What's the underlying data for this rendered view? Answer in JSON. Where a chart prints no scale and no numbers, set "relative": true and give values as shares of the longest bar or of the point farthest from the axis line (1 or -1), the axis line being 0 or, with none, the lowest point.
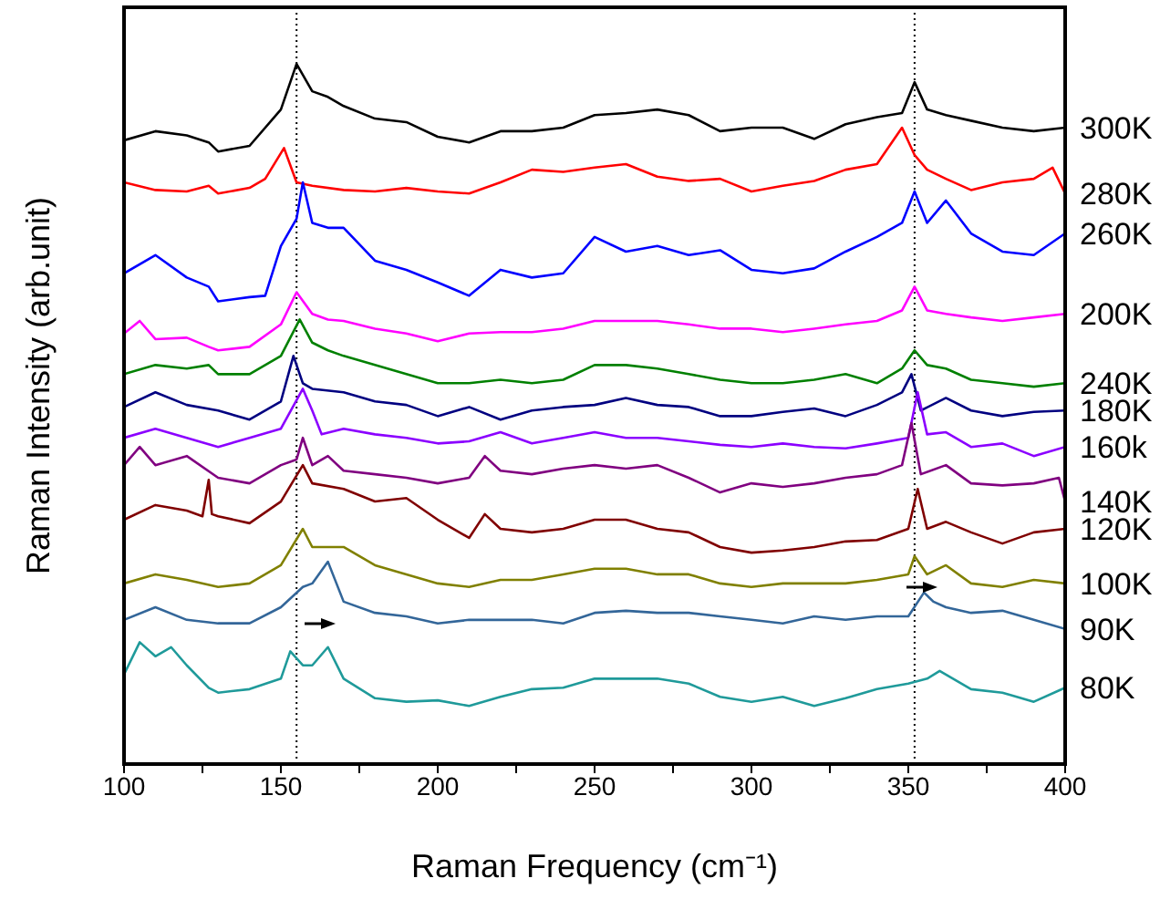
{
  "chart_data": {
    "type": "line",
    "relative": true,
    "xlabel": "Raman Frequency (cm⁻¹)",
    "ylabel": "Raman Intensity (arb.unit)",
    "xlim": [
      100,
      400
    ],
    "xticks": [
      100,
      {
        "value": 125,
        "label": null
      },
      150,
      {
        "value": 175,
        "label": null
      },
      200,
      {
        "value": 225,
        "label": null
      },
      250,
      {
        "value": 275,
        "label": null
      },
      300,
      {
        "value": 325,
        "label": null
      },
      350,
      {
        "value": 375,
        "label": null
      },
      400
    ],
    "ref_lines": [
      {
        "axis": "x",
        "value": 155,
        "color": "#000000",
        "line_style": "dotted"
      },
      {
        "axis": "x",
        "value": 352,
        "color": "#000000",
        "line_style": "dotted"
      }
    ],
    "series": [
      {
        "name": "300K",
        "color": "#000000",
        "x": [
          100,
          110,
          120,
          127,
          130,
          140,
          150,
          155,
          160,
          165,
          170,
          180,
          190,
          200,
          210,
          220,
          230,
          240,
          250,
          260,
          270,
          280,
          290,
          300,
          310,
          320,
          330,
          340,
          348,
          352,
          356,
          362,
          370,
          380,
          390,
          400
        ],
        "values": [
          0.891,
          0.904,
          0.898,
          0.888,
          0.875,
          0.883,
          0.935,
          1,
          0.961,
          0.953,
          0.94,
          0.922,
          0.917,
          0.896,
          0.888,
          0.904,
          0.904,
          0.909,
          0.927,
          0.93,
          0.935,
          0.927,
          0.904,
          0.909,
          0.909,
          0.893,
          0.914,
          0.924,
          0.93,
          0.974,
          0.935,
          0.927,
          0.919,
          0.909,
          0.904,
          0.909
        ]
      },
      {
        "name": "280K",
        "color": "#ff0000",
        "x": [
          100,
          110,
          120,
          127,
          130,
          140,
          145,
          151,
          155,
          160,
          170,
          180,
          190,
          200,
          210,
          220,
          230,
          240,
          250,
          260,
          270,
          280,
          290,
          300,
          310,
          320,
          330,
          340,
          348,
          352,
          356,
          362,
          370,
          380,
          390,
          396,
          400
        ],
        "values": [
          0.831,
          0.82,
          0.818,
          0.826,
          0.815,
          0.823,
          0.836,
          0.88,
          0.831,
          0.826,
          0.82,
          0.818,
          0.823,
          0.818,
          0.815,
          0.831,
          0.849,
          0.846,
          0.852,
          0.857,
          0.839,
          0.833,
          0.836,
          0.818,
          0.826,
          0.833,
          0.849,
          0.857,
          0.909,
          0.87,
          0.849,
          0.836,
          0.82,
          0.831,
          0.836,
          0.852,
          0.815
        ]
      },
      {
        "name": "260K",
        "color": "#0000ff",
        "x": [
          100,
          110,
          120,
          127,
          130,
          140,
          145,
          150,
          155,
          157,
          160,
          165,
          170,
          180,
          190,
          200,
          210,
          220,
          230,
          240,
          250,
          260,
          270,
          280,
          290,
          300,
          310,
          320,
          330,
          340,
          348,
          352,
          356,
          362,
          370,
          380,
          390,
          400
        ],
        "values": [
          0.701,
          0.727,
          0.695,
          0.682,
          0.661,
          0.667,
          0.669,
          0.74,
          0.779,
          0.831,
          0.773,
          0.766,
          0.766,
          0.719,
          0.706,
          0.688,
          0.669,
          0.706,
          0.695,
          0.701,
          0.753,
          0.732,
          0.74,
          0.727,
          0.734,
          0.706,
          0.701,
          0.708,
          0.732,
          0.753,
          0.773,
          0.818,
          0.773,
          0.805,
          0.758,
          0.732,
          0.727,
          0.758
        ]
      },
      {
        "name": "200K",
        "color": "#ff00ff",
        "x": [
          100,
          105,
          110,
          120,
          127,
          130,
          140,
          150,
          155,
          160,
          165,
          170,
          180,
          190,
          200,
          210,
          220,
          230,
          240,
          250,
          260,
          270,
          280,
          290,
          300,
          310,
          320,
          330,
          340,
          348,
          352,
          356,
          362,
          370,
          380,
          390,
          400
        ],
        "values": [
          0.615,
          0.633,
          0.607,
          0.609,
          0.596,
          0.591,
          0.596,
          0.628,
          0.674,
          0.643,
          0.635,
          0.633,
          0.622,
          0.615,
          0.604,
          0.615,
          0.617,
          0.617,
          0.622,
          0.633,
          0.633,
          0.633,
          0.628,
          0.622,
          0.622,
          0.617,
          0.622,
          0.628,
          0.633,
          0.648,
          0.682,
          0.648,
          0.643,
          0.638,
          0.633,
          0.638,
          0.643
        ]
      },
      {
        "name": "240K",
        "color": "#008000",
        "x": [
          100,
          110,
          120,
          127,
          130,
          140,
          150,
          153,
          156,
          160,
          165,
          170,
          180,
          190,
          200,
          210,
          220,
          230,
          240,
          250,
          260,
          270,
          280,
          290,
          300,
          310,
          320,
          330,
          340,
          348,
          352,
          356,
          362,
          370,
          380,
          390,
          400
        ],
        "values": [
          0.557,
          0.57,
          0.565,
          0.57,
          0.557,
          0.557,
          0.583,
          0.609,
          0.635,
          0.602,
          0.591,
          0.583,
          0.57,
          0.557,
          0.544,
          0.544,
          0.549,
          0.544,
          0.549,
          0.57,
          0.57,
          0.565,
          0.557,
          0.549,
          0.544,
          0.544,
          0.549,
          0.557,
          0.544,
          0.565,
          0.591,
          0.57,
          0.565,
          0.549,
          0.544,
          0.539,
          0.544
        ]
      },
      {
        "name": "180K",
        "color": "#000080",
        "x": [
          100,
          110,
          120,
          130,
          140,
          150,
          154,
          157,
          160,
          170,
          180,
          190,
          200,
          210,
          220,
          230,
          240,
          250,
          260,
          270,
          280,
          290,
          300,
          310,
          320,
          330,
          340,
          348,
          351,
          354,
          362,
          370,
          380,
          390,
          400
        ],
        "values": [
          0.51,
          0.531,
          0.513,
          0.505,
          0.492,
          0.518,
          0.583,
          0.544,
          0.536,
          0.531,
          0.518,
          0.513,
          0.497,
          0.51,
          0.492,
          0.505,
          0.51,
          0.513,
          0.523,
          0.513,
          0.51,
          0.497,
          0.497,
          0.503,
          0.508,
          0.497,
          0.513,
          0.531,
          0.557,
          0.505,
          0.523,
          0.505,
          0.497,
          0.503,
          0.505
        ]
      },
      {
        "name": "160k",
        "color": "#8b00ff",
        "x": [
          100,
          110,
          120,
          130,
          140,
          150,
          157,
          160,
          163,
          170,
          180,
          190,
          200,
          210,
          220,
          230,
          240,
          250,
          260,
          270,
          280,
          290,
          300,
          310,
          320,
          330,
          340,
          350,
          353,
          356,
          362,
          370,
          380,
          390,
          400
        ],
        "values": [
          0.466,
          0.479,
          0.466,
          0.453,
          0.466,
          0.479,
          0.536,
          0.505,
          0.471,
          0.479,
          0.471,
          0.466,
          0.458,
          0.461,
          0.474,
          0.458,
          0.466,
          0.474,
          0.466,
          0.466,
          0.461,
          0.456,
          0.453,
          0.458,
          0.453,
          0.451,
          0.458,
          0.466,
          0.531,
          0.471,
          0.474,
          0.453,
          0.458,
          0.44,
          0.453
        ]
      },
      {
        "name": "140K",
        "color": "#800080",
        "x": [
          100,
          105,
          110,
          120,
          130,
          140,
          150,
          155,
          157,
          160,
          165,
          170,
          180,
          190,
          200,
          210,
          215,
          220,
          230,
          240,
          250,
          260,
          270,
          280,
          290,
          300,
          310,
          320,
          330,
          340,
          348,
          351,
          354,
          362,
          370,
          380,
          390,
          398,
          400
        ],
        "values": [
          0.427,
          0.453,
          0.427,
          0.44,
          0.409,
          0.401,
          0.427,
          0.435,
          0.466,
          0.427,
          0.44,
          0.419,
          0.414,
          0.409,
          0.401,
          0.409,
          0.44,
          0.419,
          0.414,
          0.422,
          0.427,
          0.422,
          0.427,
          0.409,
          0.388,
          0.401,
          0.396,
          0.401,
          0.409,
          0.414,
          0.427,
          0.487,
          0.414,
          0.427,
          0.401,
          0.398,
          0.401,
          0.409,
          0.375
        ]
      },
      {
        "name": "120K",
        "color": "#800000",
        "x": [
          100,
          110,
          120,
          125,
          127,
          128,
          130,
          140,
          150,
          157,
          160,
          170,
          180,
          190,
          200,
          210,
          215,
          220,
          230,
          240,
          250,
          260,
          270,
          280,
          290,
          300,
          310,
          320,
          330,
          340,
          350,
          353,
          356,
          362,
          370,
          380,
          390,
          400
        ],
        "values": [
          0.349,
          0.37,
          0.362,
          0.354,
          0.406,
          0.357,
          0.354,
          0.344,
          0.375,
          0.427,
          0.401,
          0.393,
          0.375,
          0.38,
          0.349,
          0.323,
          0.357,
          0.336,
          0.331,
          0.336,
          0.349,
          0.349,
          0.336,
          0.331,
          0.31,
          0.302,
          0.305,
          0.31,
          0.318,
          0.32,
          0.336,
          0.393,
          0.336,
          0.346,
          0.331,
          0.315,
          0.331,
          0.336
        ]
      },
      {
        "name": "100K",
        "color": "#808000",
        "x": [
          100,
          110,
          120,
          130,
          140,
          150,
          157,
          160,
          170,
          180,
          190,
          200,
          210,
          220,
          230,
          240,
          250,
          260,
          270,
          280,
          290,
          300,
          310,
          320,
          330,
          340,
          350,
          352,
          356,
          362,
          370,
          380,
          390,
          400
        ],
        "values": [
          0.258,
          0.271,
          0.263,
          0.253,
          0.258,
          0.284,
          0.336,
          0.31,
          0.31,
          0.284,
          0.271,
          0.258,
          0.253,
          0.263,
          0.263,
          0.271,
          0.279,
          0.279,
          0.271,
          0.271,
          0.258,
          0.253,
          0.258,
          0.258,
          0.258,
          0.263,
          0.271,
          0.297,
          0.271,
          0.284,
          0.258,
          0.253,
          0.263,
          0.258
        ]
      },
      {
        "name": "90K",
        "color": "#336699",
        "x": [
          100,
          110,
          120,
          130,
          140,
          150,
          157,
          160,
          165,
          170,
          180,
          190,
          200,
          210,
          220,
          230,
          240,
          250,
          260,
          270,
          280,
          290,
          300,
          310,
          320,
          330,
          340,
          350,
          355,
          358,
          362,
          370,
          380,
          390,
          400
        ],
        "values": [
          0.206,
          0.224,
          0.206,
          0.201,
          0.201,
          0.224,
          0.253,
          0.258,
          0.289,
          0.232,
          0.216,
          0.211,
          0.201,
          0.206,
          0.206,
          0.206,
          0.201,
          0.216,
          0.219,
          0.216,
          0.216,
          0.211,
          0.206,
          0.201,
          0.211,
          0.206,
          0.211,
          0.211,
          0.245,
          0.232,
          0.224,
          0.216,
          0.219,
          0.206,
          0.193
        ]
      },
      {
        "name": "80K",
        "color": "#1f9a9a",
        "x": [
          100,
          105,
          110,
          115,
          120,
          127,
          130,
          140,
          150,
          153,
          157,
          160,
          165,
          170,
          180,
          190,
          200,
          210,
          220,
          230,
          240,
          250,
          260,
          270,
          280,
          290,
          300,
          310,
          320,
          330,
          340,
          350,
          356,
          360,
          370,
          380,
          390,
          400
        ],
        "values": [
          0.128,
          0.174,
          0.154,
          0.167,
          0.141,
          0.109,
          0.102,
          0.107,
          0.122,
          0.161,
          0.141,
          0.141,
          0.167,
          0.122,
          0.094,
          0.089,
          0.091,
          0.083,
          0.096,
          0.107,
          0.109,
          0.122,
          0.122,
          0.122,
          0.115,
          0.096,
          0.089,
          0.096,
          0.083,
          0.094,
          0.107,
          0.115,
          0.122,
          0.133,
          0.107,
          0.102,
          0.089,
          0.109
        ]
      }
    ]
  }
}
